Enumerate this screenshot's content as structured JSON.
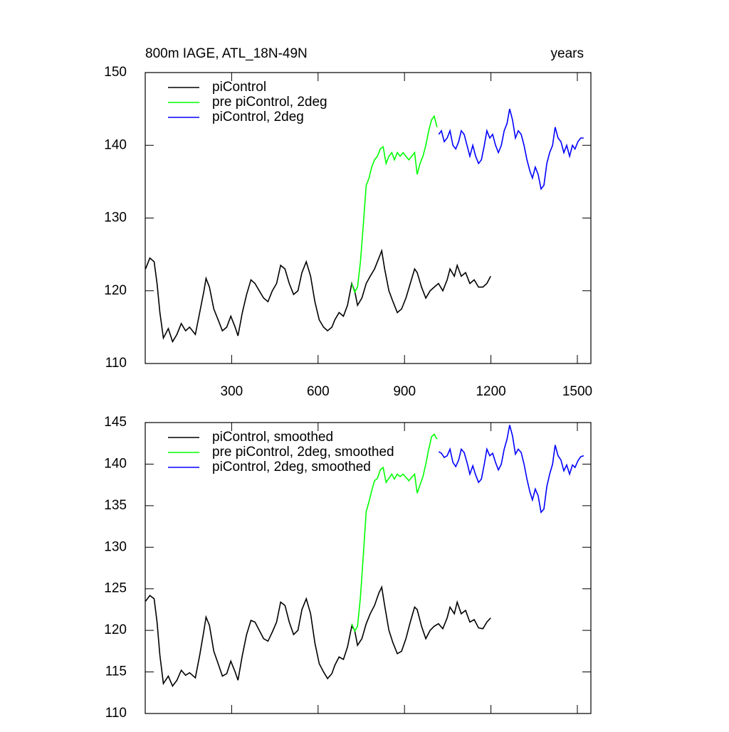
{
  "chart_data": [
    {
      "type": "line",
      "title": "800m IAGE, ATL_18N-49N",
      "units": "years",
      "xlim": [
        0,
        1547
      ],
      "xticks": [
        300,
        600,
        900,
        1200,
        1500
      ],
      "xtick_labels": true,
      "ylim": [
        110,
        150
      ],
      "yticks": [
        110,
        120,
        130,
        140,
        150
      ],
      "legend": "upper left",
      "series": [
        {
          "name": "piControl",
          "color": "#000000",
          "x": [
            1,
            16,
            31,
            41,
            51,
            63,
            80,
            95,
            110,
            125,
            140,
            154,
            174,
            189,
            204,
            211,
            223,
            238,
            253,
            268,
            283,
            297,
            312,
            322,
            337,
            352,
            367,
            381,
            396,
            411,
            426,
            441,
            456,
            470,
            485,
            500,
            515,
            530,
            544,
            559,
            574,
            589,
            604,
            619,
            633,
            648,
            658,
            673,
            688,
            702,
            717,
            727,
            737,
            752,
            767,
            781,
            796,
            811,
            821,
            831,
            846,
            860,
            875,
            890,
            905,
            920,
            935,
            944,
            959,
            974,
            989,
            1003,
            1018,
            1033,
            1048,
            1058,
            1073,
            1083,
            1097,
            1112,
            1127,
            1142,
            1157,
            1172,
            1186,
            1199
          ],
          "values": [
            123,
            124.5,
            124,
            121,
            117,
            113.5,
            114.8,
            113,
            114,
            115.5,
            114.5,
            115,
            114,
            117,
            120,
            121.7,
            120.5,
            117.5,
            116,
            114.5,
            115,
            116.5,
            115,
            113.8,
            117,
            119.5,
            121.5,
            121,
            120,
            119,
            118.5,
            120,
            121,
            123.5,
            123,
            121,
            119.5,
            120,
            122.5,
            124,
            122,
            118.5,
            116,
            115,
            114.5,
            115,
            116,
            117,
            116.5,
            118,
            121,
            120,
            118,
            119,
            121,
            122,
            123,
            124.5,
            125.5,
            123,
            120,
            118.5,
            117,
            117.5,
            119,
            121,
            123,
            122.5,
            120.5,
            119,
            120,
            120.5,
            121,
            120,
            121.5,
            123,
            122,
            123.5,
            122,
            122.5,
            121,
            121.5,
            120.5,
            120.5,
            121,
            122
          ]
        },
        {
          "name": "pre piControl, 2deg",
          "color": "#00ff00",
          "x": [
            717,
            727,
            737,
            747,
            757,
            767,
            777,
            786,
            796,
            806,
            816,
            826,
            836,
            846,
            856,
            865,
            875,
            885,
            895,
            905,
            915,
            925,
            935,
            944,
            954,
            964,
            974,
            984,
            994,
            1003,
            1013
          ],
          "values": [
            121,
            119.8,
            120.5,
            124,
            129,
            134.5,
            135.5,
            137,
            138,
            138.5,
            139.5,
            139.8,
            137.5,
            138.5,
            139,
            138,
            139,
            138.5,
            139,
            138.5,
            138,
            138.5,
            139,
            136,
            137.5,
            138.5,
            140,
            142,
            143.5,
            144,
            142.5
          ]
        },
        {
          "name": "piControl, 2deg",
          "color": "#0000ff",
          "x": [
            1019,
            1028,
            1038,
            1048,
            1058,
            1068,
            1078,
            1088,
            1097,
            1107,
            1117,
            1127,
            1137,
            1147,
            1157,
            1167,
            1177,
            1186,
            1196,
            1206,
            1216,
            1226,
            1236,
            1246,
            1256,
            1265,
            1275,
            1285,
            1295,
            1305,
            1315,
            1325,
            1335,
            1344,
            1354,
            1364,
            1374,
            1384,
            1394,
            1404,
            1414,
            1423,
            1433,
            1443,
            1453,
            1463,
            1473,
            1483,
            1492,
            1502,
            1512,
            1522
          ],
          "values": [
            141.5,
            142,
            140.5,
            141,
            142,
            140,
            139.5,
            140.5,
            142,
            141.5,
            140,
            138.5,
            140,
            138.5,
            137.5,
            138,
            140,
            142,
            141,
            141.5,
            140,
            139,
            140,
            142,
            143,
            145,
            143.5,
            141,
            142,
            141.5,
            140,
            138,
            136.5,
            135.5,
            137,
            136,
            134,
            134.5,
            137.5,
            139,
            140,
            142.5,
            141,
            140.5,
            139,
            140,
            138.5,
            140,
            139.5,
            140.5,
            141,
            141
          ]
        }
      ]
    },
    {
      "type": "line",
      "xlim": [
        0,
        1547
      ],
      "xticks": [
        300,
        600,
        900,
        1200,
        1500
      ],
      "xtick_labels": false,
      "ylim": [
        110,
        145
      ],
      "yticks": [
        110,
        115,
        120,
        125,
        130,
        135,
        140,
        145
      ],
      "legend": "upper left",
      "series": [
        {
          "name": "piControl, smoothed",
          "color": "#000000",
          "x": [
            1,
            16,
            31,
            41,
            51,
            63,
            80,
            95,
            110,
            125,
            140,
            154,
            174,
            189,
            204,
            211,
            223,
            238,
            253,
            268,
            283,
            297,
            312,
            322,
            337,
            352,
            367,
            381,
            396,
            411,
            426,
            441,
            456,
            470,
            485,
            500,
            515,
            530,
            544,
            559,
            574,
            589,
            604,
            619,
            633,
            648,
            658,
            673,
            688,
            702,
            717,
            727,
            737,
            752,
            767,
            781,
            796,
            811,
            821,
            831,
            846,
            860,
            875,
            890,
            905,
            920,
            935,
            944,
            959,
            974,
            989,
            1003,
            1018,
            1033,
            1048,
            1058,
            1073,
            1083,
            1097,
            1112,
            1127,
            1142,
            1157,
            1172,
            1186,
            1199
          ],
          "values": [
            123.5,
            124.2,
            123.8,
            121,
            117,
            113.6,
            114.5,
            113.3,
            114,
            115.2,
            114.6,
            114.9,
            114.3,
            117,
            120,
            121.6,
            120.6,
            117.5,
            116,
            114.5,
            114.8,
            116.3,
            115,
            114,
            117,
            119.5,
            121.2,
            121,
            120,
            119,
            118.7,
            119.8,
            121,
            123.4,
            123,
            121,
            119.5,
            120,
            122.5,
            123.8,
            122,
            118.5,
            116,
            115,
            114.2,
            114.8,
            115.8,
            116.8,
            116.5,
            118,
            120.5,
            120,
            118.2,
            119,
            120.8,
            122,
            123,
            124.5,
            125.2,
            123,
            120,
            118.5,
            117.2,
            117.5,
            119,
            121,
            122.8,
            122.5,
            120.5,
            119,
            120,
            120.5,
            120.8,
            120.2,
            121.5,
            122.8,
            122,
            123.4,
            122,
            122.4,
            121,
            121.3,
            120.3,
            120.2,
            121,
            121.5
          ]
        },
        {
          "name": "pre piControl, 2deg, smoothed",
          "color": "#00ff00",
          "x": [
            717,
            727,
            737,
            747,
            757,
            767,
            777,
            786,
            796,
            806,
            816,
            826,
            836,
            846,
            856,
            865,
            875,
            885,
            895,
            905,
            915,
            925,
            935,
            944,
            954,
            964,
            974,
            984,
            994,
            1003,
            1013
          ],
          "values": [
            120.8,
            119.9,
            120.5,
            124,
            129,
            134.3,
            135.5,
            136.8,
            138,
            138.3,
            139.3,
            139.6,
            137.8,
            138.3,
            138.8,
            138.2,
            138.8,
            138.5,
            138.8,
            138.4,
            138,
            138.4,
            138.8,
            136.5,
            137.5,
            138.5,
            140,
            141.8,
            143.3,
            143.6,
            143
          ]
        },
        {
          "name": "piControl, 2deg, smoothed",
          "color": "#0000ff",
          "x": [
            1019,
            1028,
            1038,
            1048,
            1058,
            1068,
            1078,
            1088,
            1097,
            1107,
            1117,
            1127,
            1137,
            1147,
            1157,
            1167,
            1177,
            1186,
            1196,
            1206,
            1216,
            1226,
            1236,
            1246,
            1256,
            1265,
            1275,
            1285,
            1295,
            1305,
            1315,
            1325,
            1335,
            1344,
            1354,
            1364,
            1374,
            1384,
            1394,
            1404,
            1414,
            1423,
            1433,
            1443,
            1453,
            1463,
            1473,
            1483,
            1492,
            1502,
            1512,
            1522
          ],
          "values": [
            141.5,
            141.3,
            140.8,
            141,
            141.8,
            140.2,
            139.7,
            140.5,
            141.8,
            141.4,
            140.2,
            138.8,
            139.8,
            138.7,
            137.8,
            138.2,
            140,
            141.8,
            141,
            141.3,
            140.2,
            139.3,
            140,
            141.8,
            143,
            144.7,
            143.4,
            141.2,
            141.8,
            141.4,
            140,
            138.2,
            136.7,
            135.7,
            137,
            136.2,
            134.2,
            134.6,
            137.3,
            138.8,
            140,
            142.3,
            141,
            140.5,
            139.2,
            139.9,
            138.8,
            139.9,
            139.6,
            140.4,
            140.9,
            141
          ]
        }
      ]
    }
  ]
}
